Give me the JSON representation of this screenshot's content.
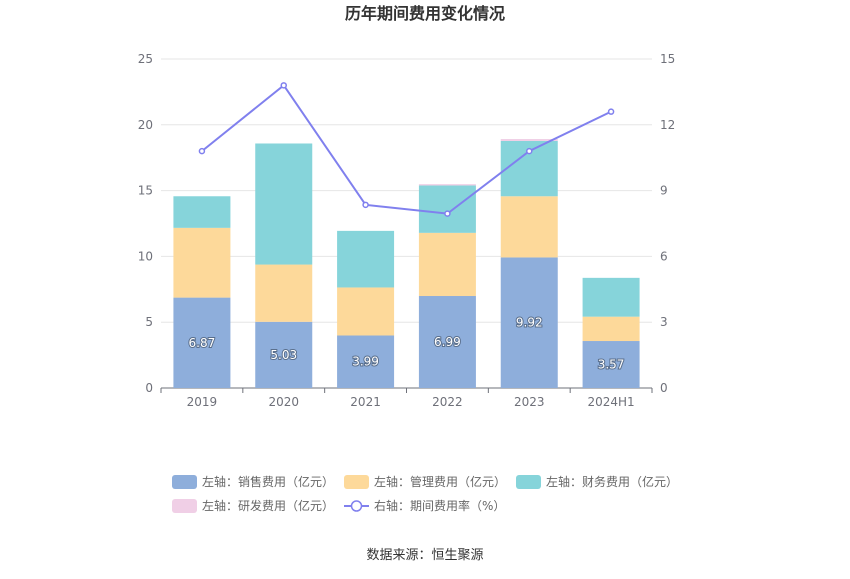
{
  "chart_data": {
    "type": "bar",
    "title": "历年期间费用变化情况",
    "categories": [
      "2019",
      "2020",
      "2021",
      "2022",
      "2023",
      "2024H1"
    ],
    "stacked": true,
    "left_axis": {
      "ylim": [
        0,
        25
      ],
      "ticks": [
        "0",
        "5",
        "10",
        "15",
        "20",
        "25"
      ]
    },
    "right_axis": {
      "ylim": [
        0,
        15
      ],
      "ticks": [
        "0",
        "3",
        "6",
        "9",
        "12",
        "15"
      ]
    },
    "grid": true,
    "legend_position": "bottom",
    "series": [
      {
        "name": "左轴：销售费用（亿元）",
        "type": "bar",
        "axis": "left",
        "color": "#8eaedb",
        "values": [
          6.87,
          5.03,
          3.99,
          6.99,
          9.92,
          3.57
        ],
        "labels": [
          "6.87",
          "5.03",
          "3.99",
          "6.99",
          "9.92",
          "3.57"
        ]
      },
      {
        "name": "左轴：管理费用（亿元）",
        "type": "bar",
        "axis": "left",
        "color": "#fdd99a",
        "values": [
          5.3,
          4.35,
          3.65,
          4.8,
          4.65,
          1.85
        ]
      },
      {
        "name": "左轴：财务费用（亿元）",
        "type": "bar",
        "axis": "left",
        "color": "#86d4da",
        "values": [
          2.4,
          9.2,
          4.3,
          3.6,
          4.2,
          2.95
        ]
      },
      {
        "name": "左轴：研发费用（亿元）",
        "type": "bar",
        "axis": "left",
        "color": "#f0cfe6",
        "values": [
          0.0,
          0.0,
          0.0,
          0.1,
          0.15,
          0.0
        ]
      },
      {
        "name": "右轴：期间费用率（%）",
        "type": "line",
        "axis": "right",
        "color": "#8080ee",
        "values": [
          10.8,
          13.8,
          8.35,
          7.95,
          10.8,
          12.6
        ]
      }
    ]
  },
  "source": "数据来源：恒生聚源"
}
